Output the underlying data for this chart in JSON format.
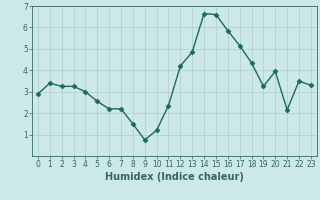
{
  "x": [
    0,
    1,
    2,
    3,
    4,
    5,
    6,
    7,
    8,
    9,
    10,
    11,
    12,
    13,
    14,
    15,
    16,
    17,
    18,
    19,
    20,
    21,
    22,
    23
  ],
  "y": [
    2.9,
    3.4,
    3.25,
    3.25,
    3.0,
    2.55,
    2.2,
    2.2,
    1.5,
    0.75,
    1.2,
    2.35,
    4.2,
    4.85,
    6.65,
    6.6,
    5.85,
    5.15,
    4.35,
    3.25,
    3.95,
    2.15,
    3.5,
    3.3
  ],
  "line_color": "#1a6b5a",
  "marker": "D",
  "markersize": 2.5,
  "linewidth": 1.0,
  "xlabel": "Humidex (Indice chaleur)",
  "xlabel_fontsize": 7,
  "ylim": [
    0,
    7
  ],
  "xlim": [
    -0.5,
    23.5
  ],
  "yticks": [
    1,
    2,
    3,
    4,
    5,
    6,
    7
  ],
  "xticks": [
    0,
    1,
    2,
    3,
    4,
    5,
    6,
    7,
    8,
    9,
    10,
    11,
    12,
    13,
    14,
    15,
    16,
    17,
    18,
    19,
    20,
    21,
    22,
    23
  ],
  "bg_color": "#cce8e8",
  "grid_color": "#b0cccc",
  "tick_fontsize": 5.5,
  "axis_color": "#336666"
}
